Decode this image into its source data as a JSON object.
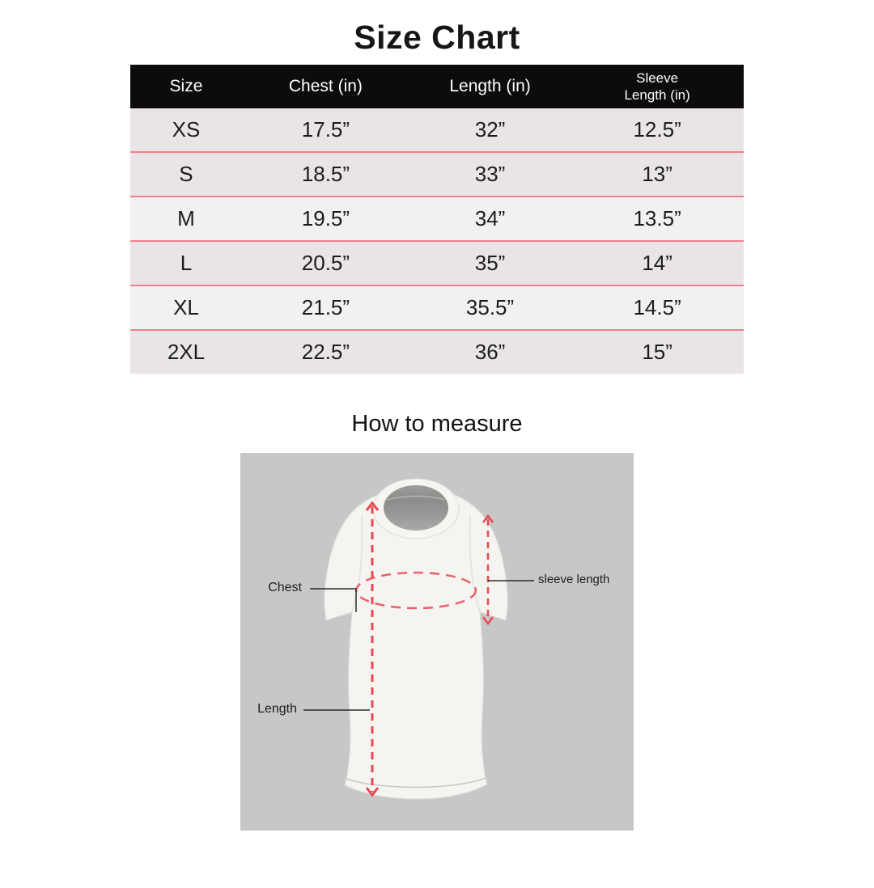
{
  "title": "Size Chart",
  "table": {
    "columns": [
      {
        "label": "Size"
      },
      {
        "label": "Chest (in)"
      },
      {
        "label": "Length (in)"
      },
      {
        "label_line1": "Sleeve",
        "label_line2": "Length (in)"
      }
    ],
    "rows": [
      {
        "size": "XS",
        "chest": "17.5”",
        "length": "32”",
        "sleeve": "12.5”"
      },
      {
        "size": "S",
        "chest": "18.5”",
        "length": "33”",
        "sleeve": "13”"
      },
      {
        "size": "M",
        "chest": "19.5”",
        "length": "34”",
        "sleeve": "13.5”"
      },
      {
        "size": "L",
        "chest": "20.5”",
        "length": "35”",
        "sleeve": "14”"
      },
      {
        "size": "XL",
        "chest": "21.5”",
        "length": "35.5”",
        "sleeve": "14.5”"
      },
      {
        "size": "2XL",
        "chest": "22.5”",
        "length": "36”",
        "sleeve": "15”"
      }
    ],
    "row_backgrounds": [
      "#e9e5e6",
      "#e9e5e6",
      "#f2f0f1",
      "#e9e5e6",
      "#f2f0f1",
      "#e9e5e6"
    ],
    "colors": {
      "header_bg": "#0d0b0c",
      "header_text": "#ffffff",
      "divider": "#ef7f8b"
    }
  },
  "how_to_measure": {
    "title": "How to measure",
    "labels": {
      "chest": "Chest",
      "sleeve": "sleeve length",
      "length": "Length"
    },
    "colors": {
      "background": "#c8c7c7",
      "annotation": "#e84852",
      "shirt": "#f5f4f1"
    }
  }
}
